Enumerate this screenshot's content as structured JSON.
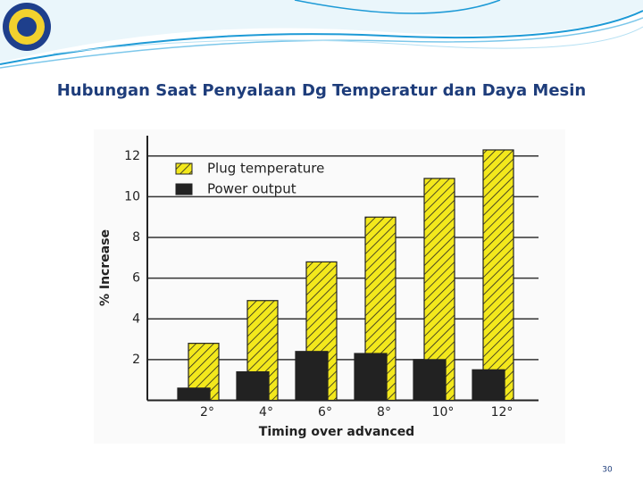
{
  "slide_title": "Hubungan Saat Penyalaan Dg Temperatur dan Daya Mesin",
  "page_number": "30",
  "chart_data": {
    "type": "bar",
    "xlabel": "Timing over advanced",
    "ylabel": "% Increase",
    "categories": [
      "2°",
      "4°",
      "6°",
      "8°",
      "10°",
      "12°"
    ],
    "series": [
      {
        "name": "Plug temperature",
        "color": "#f3e81c",
        "values": [
          2.8,
          4.9,
          6.8,
          9.0,
          10.9,
          12.3
        ]
      },
      {
        "name": "Power output",
        "color": "#222222",
        "values": [
          0.6,
          1.4,
          2.4,
          2.3,
          2.0,
          1.5
        ]
      }
    ],
    "ylim": [
      0,
      13
    ],
    "yticks": [
      2,
      4,
      6,
      8,
      10,
      12
    ],
    "grid": true
  }
}
